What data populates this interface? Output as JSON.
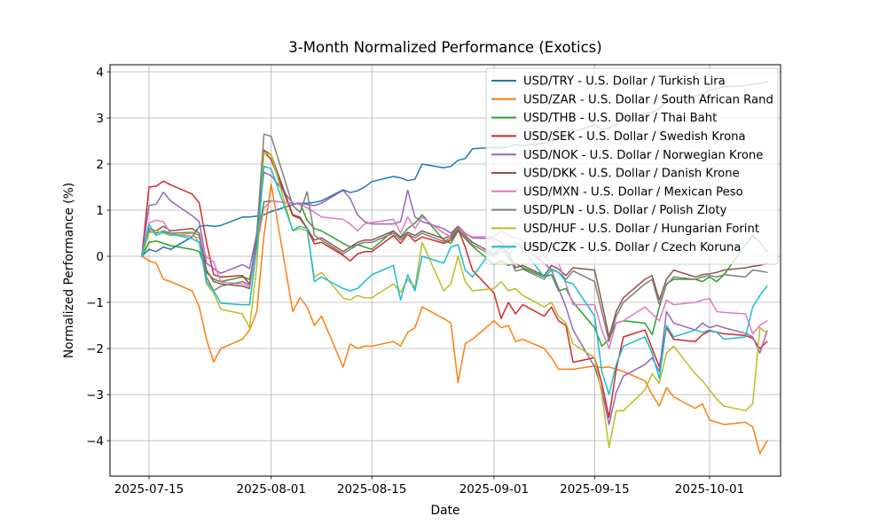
{
  "chart_data": {
    "type": "line",
    "title": "3-Month Normalized Performance (Exotics)",
    "xlabel": "Date",
    "ylabel": "Normalized Performance (%)",
    "grid": true,
    "legend_position": "upper right",
    "x_ticks": [
      "2025-07-15",
      "2025-08-01",
      "2025-08-15",
      "2025-09-01",
      "2025-09-15",
      "2025-10-01"
    ],
    "y_ticks": [
      4,
      3,
      2,
      1,
      0,
      -1,
      -2,
      -3,
      -4
    ],
    "ylim": [
      -4.77,
      4.15
    ],
    "xlim": [
      "2025-07-09",
      "2025-10-11"
    ],
    "dates": [
      "2025-07-14",
      "2025-07-15",
      "2025-07-16",
      "2025-07-17",
      "2025-07-18",
      "2025-07-21",
      "2025-07-22",
      "2025-07-23",
      "2025-07-24",
      "2025-07-25",
      "2025-07-28",
      "2025-07-29",
      "2025-07-30",
      "2025-07-31",
      "2025-08-01",
      "2025-08-04",
      "2025-08-05",
      "2025-08-06",
      "2025-08-07",
      "2025-08-08",
      "2025-08-11",
      "2025-08-12",
      "2025-08-13",
      "2025-08-14",
      "2025-08-15",
      "2025-08-18",
      "2025-08-19",
      "2025-08-20",
      "2025-08-21",
      "2025-08-22",
      "2025-08-25",
      "2025-08-26",
      "2025-08-27",
      "2025-08-28",
      "2025-08-29",
      "2025-09-01",
      "2025-09-02",
      "2025-09-03",
      "2025-09-04",
      "2025-09-05",
      "2025-09-08",
      "2025-09-09",
      "2025-09-10",
      "2025-09-11",
      "2025-09-12",
      "2025-09-15",
      "2025-09-16",
      "2025-09-17",
      "2025-09-18",
      "2025-09-19",
      "2025-09-22",
      "2025-09-23",
      "2025-09-24",
      "2025-09-25",
      "2025-09-26",
      "2025-09-29",
      "2025-09-30",
      "2025-10-01",
      "2025-10-02",
      "2025-10-03",
      "2025-10-06",
      "2025-10-07",
      "2025-10-08",
      "2025-10-09"
    ],
    "series": [
      {
        "label": "USD/TRY - U.S. Dollar / Turkish Lira",
        "color": "#1f77b4",
        "values": [
          0.0,
          0.15,
          0.1,
          0.2,
          0.15,
          0.42,
          0.65,
          0.67,
          0.65,
          0.67,
          0.85,
          0.85,
          0.87,
          0.9,
          0.97,
          1.12,
          1.15,
          1.15,
          1.17,
          1.2,
          1.44,
          1.38,
          1.42,
          1.5,
          1.62,
          1.73,
          1.7,
          1.64,
          1.67,
          2.0,
          1.92,
          1.95,
          2.08,
          2.12,
          2.33,
          2.36,
          2.35,
          2.37,
          2.42,
          2.4,
          2.45,
          2.5,
          2.55,
          2.62,
          2.7,
          2.85,
          2.75,
          2.78,
          2.85,
          3.0,
          3.1,
          3.12,
          3.2,
          3.38,
          3.45,
          3.48,
          3.52,
          3.6,
          3.64,
          3.68,
          3.7,
          3.73,
          3.75,
          3.78
        ]
      },
      {
        "label": "USD/ZAR - U.S. Dollar / South African Rand",
        "color": "#ff7f0e",
        "values": [
          0.0,
          -0.1,
          -0.15,
          -0.5,
          -0.55,
          -0.75,
          -1.1,
          -1.8,
          -2.29,
          -2.0,
          -1.8,
          -1.6,
          -1.2,
          0.45,
          1.57,
          -1.2,
          -0.9,
          -1.1,
          -1.5,
          -1.3,
          -2.4,
          -1.9,
          -2.0,
          -1.95,
          -1.95,
          -1.85,
          -1.95,
          -1.65,
          -1.55,
          -1.1,
          -1.35,
          -1.45,
          -2.74,
          -1.9,
          -1.8,
          -1.4,
          -1.55,
          -1.5,
          -1.85,
          -1.8,
          -2.0,
          -2.2,
          -2.45,
          -2.45,
          -2.45,
          -2.38,
          -2.42,
          -2.4,
          -2.45,
          -2.5,
          -2.7,
          -3.0,
          -3.25,
          -2.85,
          -3.05,
          -3.3,
          -3.2,
          -3.55,
          -3.6,
          -3.65,
          -3.6,
          -3.7,
          -4.28,
          -4.0
        ]
      },
      {
        "label": "USD/THB - U.S. Dollar / Thai Baht",
        "color": "#2ca02c",
        "values": [
          0.0,
          0.3,
          0.33,
          0.28,
          0.23,
          0.15,
          0.1,
          -0.35,
          -0.5,
          -0.55,
          -0.45,
          -0.5,
          0.3,
          1.18,
          1.2,
          1.15,
          1.15,
          0.78,
          0.6,
          0.55,
          0.28,
          0.2,
          0.25,
          0.2,
          0.15,
          0.55,
          0.42,
          0.6,
          0.72,
          0.9,
          0.35,
          0.28,
          0.55,
          0.38,
          0.22,
          -0.18,
          -0.1,
          -0.2,
          -0.15,
          -0.25,
          -0.45,
          -0.4,
          -0.75,
          -0.7,
          -1.0,
          -1.55,
          -1.95,
          -1.8,
          -1.45,
          -1.4,
          -1.45,
          -1.7,
          -1.1,
          -0.6,
          -0.5,
          -0.5,
          -0.55,
          -0.45,
          -0.55,
          -0.4,
          0.25,
          0.45,
          0.3,
          0.1
        ]
      },
      {
        "label": "USD/SEK - U.S. Dollar / Swedish Krona",
        "color": "#d62728",
        "values": [
          0.0,
          1.5,
          1.52,
          1.63,
          1.55,
          1.35,
          1.15,
          0.3,
          -0.4,
          -0.45,
          -0.42,
          -0.6,
          0.3,
          2.27,
          2.1,
          0.88,
          0.82,
          0.6,
          0.27,
          0.3,
          0.02,
          -0.1,
          0.05,
          0.1,
          0.1,
          0.45,
          0.28,
          0.48,
          0.32,
          0.42,
          0.28,
          0.35,
          0.6,
          0.2,
          -0.3,
          -0.8,
          -1.35,
          -1.0,
          -1.25,
          -1.05,
          -1.3,
          -1.1,
          -1.4,
          -1.5,
          -2.3,
          -2.2,
          -2.75,
          -3.5,
          -2.45,
          -1.75,
          -1.6,
          -2.0,
          -2.4,
          -1.55,
          -1.8,
          -1.85,
          -1.7,
          -1.62,
          -1.65,
          -1.68,
          -1.72,
          -1.78,
          -2.0,
          -1.85
        ]
      },
      {
        "label": "USD/NOK - U.S. Dollar / Norwegian Krone",
        "color": "#9467bd",
        "values": [
          0.0,
          1.1,
          1.13,
          1.39,
          1.2,
          0.88,
          0.75,
          -0.15,
          -0.27,
          -0.37,
          -0.18,
          -0.27,
          0.5,
          1.82,
          1.75,
          1.15,
          1.15,
          1.12,
          1.1,
          1.15,
          1.43,
          1.25,
          0.9,
          0.75,
          0.7,
          0.7,
          0.75,
          1.43,
          0.85,
          0.75,
          0.6,
          0.5,
          0.65,
          0.5,
          0.4,
          0.38,
          0.3,
          0.15,
          0.3,
          0.2,
          -0.15,
          -0.3,
          -0.7,
          -1.1,
          -1.6,
          -2.4,
          -2.9,
          -3.65,
          -2.95,
          -2.6,
          -2.35,
          -2.2,
          -2.5,
          -1.2,
          -1.45,
          -1.6,
          -1.45,
          -1.55,
          -1.5,
          -1.55,
          -1.67,
          -1.75,
          -2.1,
          -1.62
        ]
      },
      {
        "label": "USD/DKK - U.S. Dollar / Danish Krone",
        "color": "#8c564b",
        "values": [
          0.0,
          0.6,
          0.55,
          0.65,
          0.55,
          0.6,
          0.5,
          -0.3,
          -0.55,
          -0.6,
          -0.65,
          -0.7,
          0.4,
          2.3,
          2.2,
          0.9,
          0.85,
          0.6,
          0.35,
          0.4,
          0.1,
          0.2,
          0.3,
          0.35,
          0.35,
          0.55,
          0.4,
          0.52,
          0.45,
          0.55,
          0.38,
          0.45,
          0.65,
          0.45,
          0.3,
          0.05,
          0.18,
          0.08,
          -0.25,
          -0.2,
          -0.42,
          -0.2,
          -0.28,
          -0.42,
          -0.25,
          -0.3,
          -1.0,
          -1.75,
          -1.2,
          -0.9,
          -0.5,
          -0.42,
          -0.95,
          -0.5,
          -0.3,
          -0.45,
          -0.4,
          -0.38,
          -0.35,
          -0.3,
          -0.25,
          -0.22,
          -0.2,
          -0.15
        ]
      },
      {
        "label": "USD/MXN - U.S. Dollar / Mexican Peso",
        "color": "#e377c2",
        "values": [
          0.0,
          0.72,
          0.78,
          0.75,
          0.49,
          0.43,
          0.4,
          -0.02,
          -0.12,
          -0.56,
          -0.6,
          -0.66,
          0.2,
          1.05,
          1.2,
          1.15,
          1.12,
          1.05,
          0.96,
          0.85,
          0.8,
          0.7,
          0.55,
          0.7,
          0.73,
          0.8,
          0.5,
          0.85,
          0.6,
          0.85,
          0.5,
          0.42,
          0.62,
          0.48,
          0.42,
          0.43,
          0.55,
          0.45,
          0.4,
          0.35,
          0.0,
          -0.1,
          -0.15,
          -0.6,
          -1.05,
          -1.05,
          -1.6,
          -2.0,
          -1.45,
          -1.4,
          -1.1,
          -1.25,
          -1.4,
          -0.95,
          -1.05,
          -1.0,
          -0.95,
          -0.92,
          -1.2,
          -1.22,
          -1.25,
          -1.68,
          -1.5,
          -1.4
        ]
      },
      {
        "label": "USD/PLN - U.S. Dollar / Polish Zloty",
        "color": "#7f7f7f",
        "values": [
          0.0,
          0.55,
          0.5,
          0.55,
          0.5,
          0.52,
          0.45,
          -0.45,
          -0.75,
          -0.65,
          -0.55,
          -0.62,
          0.5,
          2.65,
          2.6,
          1.1,
          0.95,
          1.4,
          0.45,
          0.35,
          0.05,
          0.15,
          0.25,
          0.3,
          0.3,
          0.5,
          0.35,
          0.48,
          0.4,
          0.5,
          0.32,
          0.4,
          0.6,
          0.4,
          0.25,
          0.0,
          0.12,
          0.02,
          -0.32,
          -0.28,
          -0.5,
          -0.28,
          -0.35,
          -0.5,
          -0.32,
          -0.55,
          -1.2,
          -1.85,
          -1.3,
          -1.0,
          -0.6,
          -0.5,
          -1.05,
          -0.62,
          -0.45,
          -0.5,
          -0.45,
          -0.42,
          -0.45,
          -0.4,
          -0.45,
          -0.3,
          -0.32,
          -0.35
        ]
      },
      {
        "label": "USD/HUF - U.S. Dollar / Hungarian Forint",
        "color": "#bcbd22",
        "values": [
          0.0,
          0.5,
          0.55,
          0.5,
          0.45,
          0.5,
          0.3,
          -0.6,
          -0.8,
          -1.15,
          -1.25,
          -1.55,
          -0.2,
          2.25,
          2.2,
          0.55,
          0.6,
          0.55,
          -0.45,
          -0.35,
          -0.9,
          -0.95,
          -0.85,
          -0.9,
          -0.9,
          -0.6,
          -0.78,
          -0.5,
          -0.68,
          0.3,
          -0.75,
          -0.6,
          0.0,
          -0.55,
          -0.75,
          -0.7,
          -0.55,
          -0.75,
          -0.7,
          -0.85,
          -1.1,
          -1.0,
          -1.3,
          -1.45,
          -1.9,
          -2.2,
          -3.0,
          -4.15,
          -3.35,
          -3.35,
          -2.9,
          -2.55,
          -2.75,
          -2.1,
          -1.95,
          -2.55,
          -2.7,
          -2.9,
          -3.1,
          -3.25,
          -3.35,
          -3.2,
          -1.55,
          -1.67
        ]
      },
      {
        "label": "USD/CZK - U.S. Dollar / Czech Koruna",
        "color": "#17becf",
        "values": [
          0.0,
          0.69,
          0.45,
          0.52,
          0.48,
          0.38,
          0.3,
          -0.55,
          -0.75,
          -1.02,
          -1.05,
          -1.05,
          0.2,
          1.95,
          1.9,
          0.56,
          0.65,
          0.6,
          -0.55,
          -0.45,
          -0.7,
          -0.75,
          -0.7,
          -0.55,
          -0.4,
          -0.2,
          -0.95,
          -0.4,
          -0.75,
          0.0,
          -0.15,
          0.2,
          0.25,
          -0.3,
          -0.45,
          0.2,
          0.25,
          -0.05,
          0.3,
          0.15,
          -0.45,
          -0.3,
          -0.35,
          -0.55,
          -0.6,
          -1.3,
          -2.5,
          -3.0,
          -2.35,
          -1.95,
          -1.75,
          -2.1,
          -2.65,
          -1.5,
          -1.75,
          -1.6,
          -1.65,
          -1.6,
          -1.65,
          -1.8,
          -1.75,
          -1.1,
          -0.85,
          -0.65
        ]
      }
    ],
    "style": {
      "grid_color": "#b0b0b0",
      "spine_color": "#000000",
      "background": "#ffffff",
      "legend_border": "#cccccc",
      "line_width": 1.5
    }
  }
}
